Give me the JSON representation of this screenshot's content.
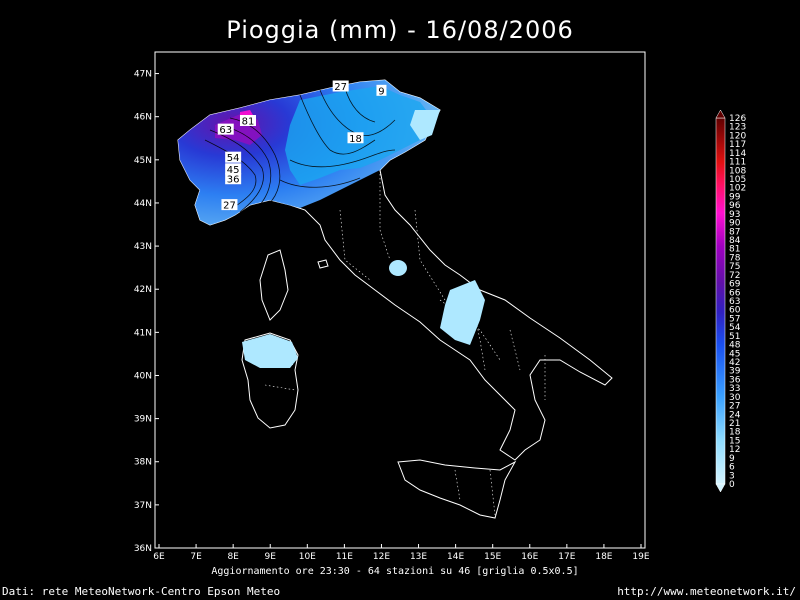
{
  "title": "Pioggia (mm) - 16/08/2006",
  "update_line": "Aggiornamento ore 23:30 - 64 stazioni su 46 [griglia 0.5x0.5]",
  "footer_left": "Dati: rete MeteoNetwork-Centro Epson Meteo",
  "footer_right": "http://www.meteonetwork.it/",
  "map": {
    "lon_range": [
      6,
      19
    ],
    "lat_range": [
      36,
      47.5
    ],
    "lon_ticks": [
      "6E",
      "7E",
      "8E",
      "9E",
      "10E",
      "11E",
      "12E",
      "13E",
      "14E",
      "15E",
      "16E",
      "17E",
      "18E",
      "19E"
    ],
    "lat_ticks": [
      "36N",
      "37N",
      "38N",
      "39N",
      "40N",
      "41N",
      "42N",
      "43N",
      "44N",
      "45N",
      "46N",
      "47N"
    ]
  },
  "contour_labels": [
    {
      "text": "27",
      "lon": 10.9,
      "lat": 46.7
    },
    {
      "text": "9",
      "lon": 12.0,
      "lat": 46.6
    },
    {
      "text": "81",
      "lon": 8.4,
      "lat": 45.9
    },
    {
      "text": "63",
      "lon": 7.8,
      "lat": 45.7
    },
    {
      "text": "18",
      "lon": 11.3,
      "lat": 45.5
    },
    {
      "text": "54",
      "lon": 8.0,
      "lat": 45.05
    },
    {
      "text": "45",
      "lon": 8.0,
      "lat": 44.78
    },
    {
      "text": "36",
      "lon": 8.0,
      "lat": 44.55
    },
    {
      "text": "27",
      "lon": 7.9,
      "lat": 43.95
    }
  ],
  "colorbar": {
    "labels": [
      "0",
      "3",
      "6",
      "9",
      "12",
      "15",
      "18",
      "21",
      "24",
      "27",
      "30",
      "33",
      "36",
      "39",
      "42",
      "45",
      "48",
      "51",
      "54",
      "57",
      "60",
      "63",
      "66",
      "69",
      "72",
      "75",
      "78",
      "81",
      "84",
      "87",
      "90",
      "93",
      "96",
      "99",
      "102",
      "105",
      "108",
      "111",
      "114",
      "117",
      "120",
      "123",
      "126"
    ],
    "colors": {
      "light": "#bfefff",
      "blue": "#1e6bff",
      "purple": "#5a18b0",
      "magenta": "#ff00d0",
      "red": "#e01818",
      "darkred": "#6a0000"
    }
  }
}
